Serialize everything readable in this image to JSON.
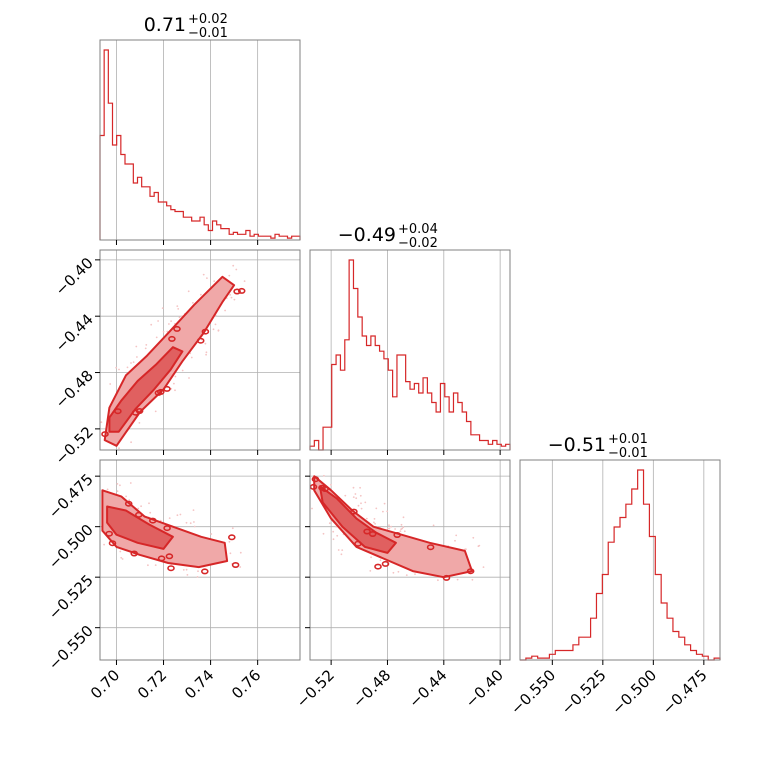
{
  "colors": {
    "accent": "#d62728",
    "contour_fill_outer": "#f0a8a8",
    "contour_fill_inner": "#e06060",
    "scatter": "#f4c4c4",
    "grid": "#b0b0b0",
    "frame": "#808080"
  },
  "chart_data": {
    "type": "corner",
    "grid": true,
    "parameters": [
      {
        "title": {
          "median": "0.71",
          "plus": "+0.02",
          "minus": "−0.01"
        },
        "range": [
          0.693,
          0.778
        ],
        "ticks": [
          0.7,
          0.72,
          0.74,
          0.76
        ],
        "tick_labels": [
          "0.70",
          "0.72",
          "0.74",
          "0.76"
        ],
        "hist_heights": [
          0.55,
          1.0,
          0.72,
          0.5,
          0.55,
          0.45,
          0.4,
          0.4,
          0.3,
          0.33,
          0.28,
          0.28,
          0.23,
          0.25,
          0.2,
          0.2,
          0.18,
          0.16,
          0.15,
          0.15,
          0.12,
          0.12,
          0.1,
          0.1,
          0.12,
          0.08,
          0.05,
          0.1,
          0.08,
          0.06,
          0.06,
          0.03,
          0.04,
          0.03,
          0.03,
          0.05,
          0.02,
          0.03,
          0.02,
          0.02,
          0.02,
          0.01,
          0.03,
          0.02,
          0.02,
          0.01,
          0.02,
          0.02
        ]
      },
      {
        "title": {
          "median": "−0.49",
          "plus": "+0.04",
          "minus": "−0.02"
        },
        "range": [
          -0.535,
          -0.393
        ],
        "ticks": [
          -0.52,
          -0.48,
          -0.44,
          -0.4
        ],
        "tick_labels": [
          "−0.52",
          "−0.48",
          "−0.44",
          "−0.40"
        ],
        "hist_heights": [
          0.02,
          0.05,
          0.0,
          0.12,
          0.12,
          0.45,
          0.5,
          0.42,
          0.58,
          1.0,
          0.85,
          0.7,
          0.6,
          0.55,
          0.6,
          0.55,
          0.52,
          0.48,
          0.42,
          0.28,
          0.5,
          0.5,
          0.36,
          0.32,
          0.35,
          0.3,
          0.38,
          0.3,
          0.25,
          0.2,
          0.35,
          0.28,
          0.2,
          0.3,
          0.25,
          0.2,
          0.15,
          0.08,
          0.08,
          0.05,
          0.05,
          0.03,
          0.05,
          0.03,
          0.02,
          0.03
        ]
      },
      {
        "title": {
          "median": "−0.51",
          "plus": "+0.01",
          "minus": "−0.01"
        },
        "range": [
          -0.566,
          -0.467
        ],
        "ticks": [
          -0.55,
          -0.525,
          -0.5,
          -0.475
        ],
        "tick_labels": [
          "−0.550",
          "−0.525",
          "−0.500",
          "−0.475"
        ],
        "hist_heights": [
          0.0,
          0.01,
          0.02,
          0.01,
          0.01,
          0.03,
          0.05,
          0.05,
          0.05,
          0.08,
          0.12,
          0.12,
          0.22,
          0.35,
          0.45,
          0.62,
          0.7,
          0.75,
          0.82,
          0.9,
          1.0,
          0.82,
          0.65,
          0.45,
          0.3,
          0.22,
          0.15,
          0.12,
          0.08,
          0.05,
          0.03,
          0.02,
          0.0,
          0.01
        ]
      }
    ],
    "pairs": [
      {
        "x_param": 0,
        "y_param": 1,
        "contour_outer": [
          [
            0.695,
            -0.528
          ],
          [
            0.7,
            -0.532
          ],
          [
            0.71,
            -0.508
          ],
          [
            0.72,
            -0.492
          ],
          [
            0.728,
            -0.472
          ],
          [
            0.737,
            -0.452
          ],
          [
            0.745,
            -0.43
          ],
          [
            0.75,
            -0.418
          ],
          [
            0.745,
            -0.412
          ],
          [
            0.733,
            -0.432
          ],
          [
            0.722,
            -0.452
          ],
          [
            0.713,
            -0.468
          ],
          [
            0.704,
            -0.482
          ],
          [
            0.697,
            -0.505
          ]
        ],
        "contour_inner": [
          [
            0.697,
            -0.522
          ],
          [
            0.701,
            -0.522
          ],
          [
            0.708,
            -0.506
          ],
          [
            0.716,
            -0.492
          ],
          [
            0.723,
            -0.478
          ],
          [
            0.728,
            -0.465
          ],
          [
            0.724,
            -0.462
          ],
          [
            0.717,
            -0.474
          ],
          [
            0.709,
            -0.486
          ],
          [
            0.702,
            -0.5
          ],
          [
            0.697,
            -0.512
          ]
        ]
      },
      {
        "x_param": 0,
        "y_param": 2,
        "contour_outer": [
          [
            0.694,
            -0.482
          ],
          [
            0.702,
            -0.485
          ],
          [
            0.712,
            -0.495
          ],
          [
            0.724,
            -0.5
          ],
          [
            0.736,
            -0.505
          ],
          [
            0.746,
            -0.508
          ],
          [
            0.747,
            -0.517
          ],
          [
            0.735,
            -0.52
          ],
          [
            0.722,
            -0.518
          ],
          [
            0.71,
            -0.514
          ],
          [
            0.7,
            -0.51
          ],
          [
            0.694,
            -0.502
          ]
        ],
        "contour_inner": [
          [
            0.696,
            -0.49
          ],
          [
            0.704,
            -0.492
          ],
          [
            0.714,
            -0.499
          ],
          [
            0.724,
            -0.505
          ],
          [
            0.72,
            -0.511
          ],
          [
            0.709,
            -0.508
          ],
          [
            0.7,
            -0.504
          ],
          [
            0.696,
            -0.498
          ]
        ]
      },
      {
        "x_param": 1,
        "y_param": 2,
        "contour_outer": [
          [
            -0.532,
            -0.475
          ],
          [
            -0.52,
            -0.482
          ],
          [
            -0.505,
            -0.492
          ],
          [
            -0.49,
            -0.5
          ],
          [
            -0.47,
            -0.504
          ],
          [
            -0.45,
            -0.508
          ],
          [
            -0.425,
            -0.512
          ],
          [
            -0.42,
            -0.522
          ],
          [
            -0.44,
            -0.525
          ],
          [
            -0.462,
            -0.522
          ],
          [
            -0.482,
            -0.516
          ],
          [
            -0.502,
            -0.51
          ],
          [
            -0.52,
            -0.496
          ],
          [
            -0.532,
            -0.482
          ]
        ],
        "contour_inner": [
          [
            -0.528,
            -0.48
          ],
          [
            -0.516,
            -0.486
          ],
          [
            -0.502,
            -0.496
          ],
          [
            -0.488,
            -0.503
          ],
          [
            -0.474,
            -0.508
          ],
          [
            -0.48,
            -0.513
          ],
          [
            -0.496,
            -0.51
          ],
          [
            -0.512,
            -0.5
          ],
          [
            -0.526,
            -0.488
          ]
        ]
      }
    ]
  }
}
